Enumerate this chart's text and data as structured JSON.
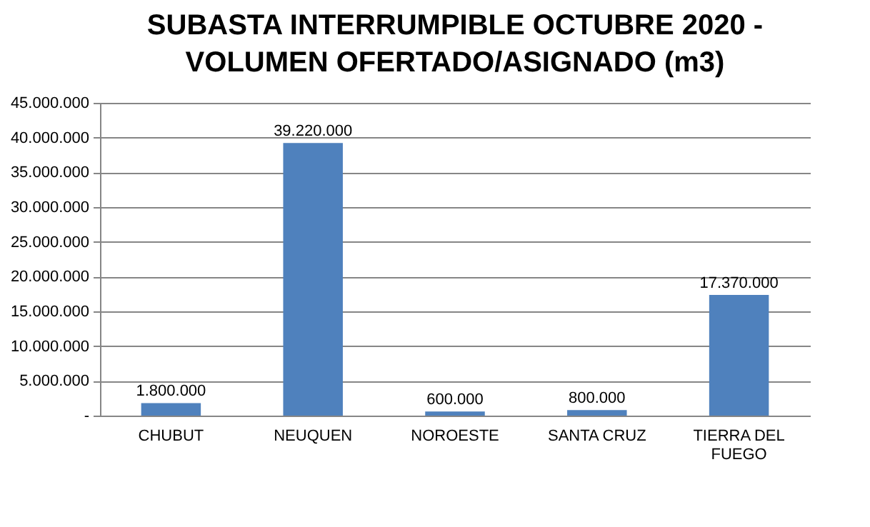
{
  "chart_data": {
    "type": "bar",
    "title": "SUBASTA INTERRUMPIBLE OCTUBRE 2020 -\nVOLUMEN OFERTADO/ASIGNADO (m3)",
    "categories": [
      "CHUBUT",
      "NEUQUEN",
      "NOROESTE",
      "SANTA CRUZ",
      "TIERRA DEL FUEGO"
    ],
    "values": [
      1800000,
      39220000,
      600000,
      800000,
      17370000
    ],
    "value_labels": [
      "1.800.000",
      "39.220.000",
      "600.000",
      "800.000",
      "17.370.000"
    ],
    "color": "#4f81bd",
    "ylim": [
      0,
      45000000
    ],
    "yticks": [
      {
        "value": 0,
        "label": "-"
      },
      {
        "value": 5000000,
        "label": "5.000.000"
      },
      {
        "value": 10000000,
        "label": "10.000.000"
      },
      {
        "value": 15000000,
        "label": "15.000.000"
      },
      {
        "value": 20000000,
        "label": "20.000.000"
      },
      {
        "value": 25000000,
        "label": "25.000.000"
      },
      {
        "value": 30000000,
        "label": "30.000.000"
      },
      {
        "value": 35000000,
        "label": "35.000.000"
      },
      {
        "value": 40000000,
        "label": "40.000.000"
      },
      {
        "value": 45000000,
        "label": "45.000.000"
      }
    ],
    "grid": "y"
  }
}
